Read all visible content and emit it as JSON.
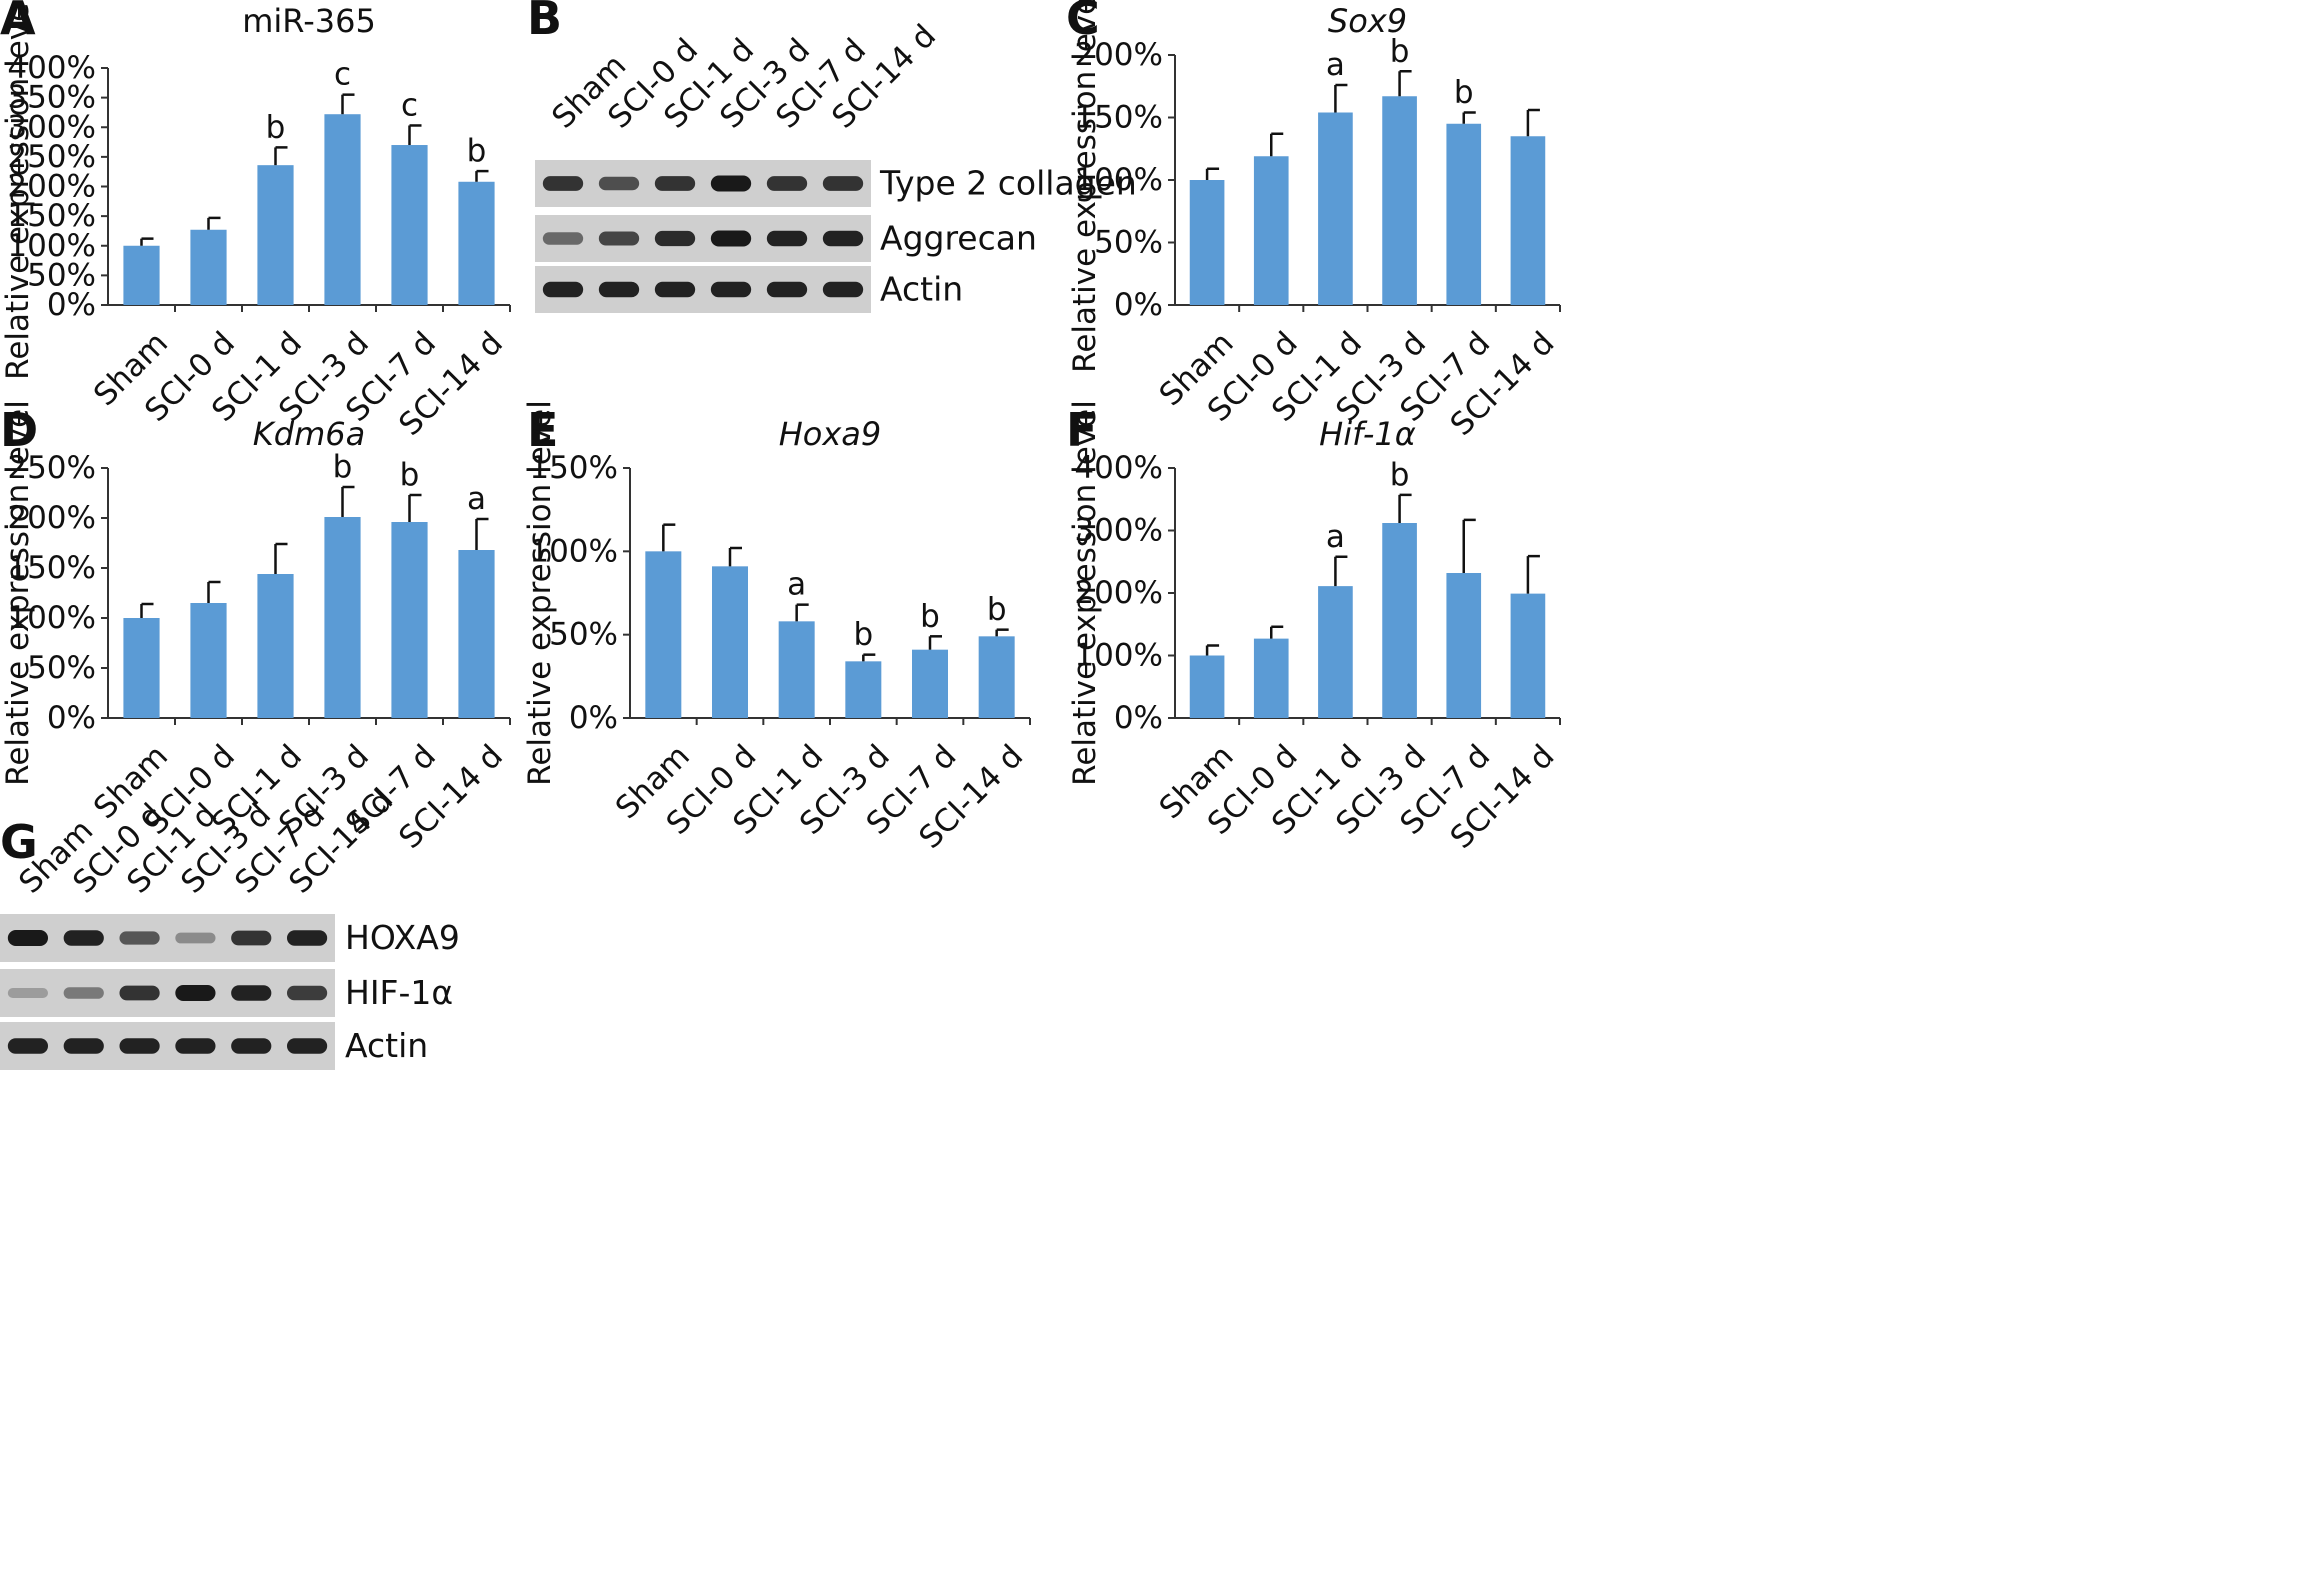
{
  "chart_data": [
    {
      "type": "bar",
      "panel": "A",
      "title": "miR-365",
      "italic_title": false,
      "ylabel": "Relative expression level",
      "categories": [
        "Sham",
        "SCI-0 d",
        "SCI-1 d",
        "SCI-3 d",
        "SCI-7 d",
        "SCI-14 d"
      ],
      "values": [
        100,
        127,
        236,
        322,
        270,
        208
      ],
      "errors": [
        12,
        20,
        30,
        33,
        33,
        18
      ],
      "significance": [
        "",
        "",
        "b",
        "c",
        "c",
        "b"
      ],
      "ylim": [
        0,
        400
      ],
      "ytick_step": 50,
      "yticks": [
        "0%",
        "50%",
        "100%",
        "150%",
        "200%",
        "250%",
        "300%",
        "350%",
        "400%"
      ],
      "bar_color": "#5b9bd5",
      "grid": false
    },
    {
      "type": "bar",
      "panel": "C",
      "title": "Sox9",
      "italic_title": true,
      "ylabel": "Relative expression level",
      "categories": [
        "Sham",
        "SCI-0 d",
        "SCI-1 d",
        "SCI-3 d",
        "SCI-7 d",
        "SCI-14 d"
      ],
      "values": [
        100,
        119,
        154,
        167,
        145,
        135
      ],
      "errors": [
        9,
        18,
        22,
        20,
        9,
        21
      ],
      "significance": [
        "",
        "",
        "a",
        "b",
        "b",
        ""
      ],
      "ylim": [
        0,
        200
      ],
      "ytick_step": 50,
      "yticks": [
        "0%",
        "50%",
        "100%",
        "150%",
        "200%"
      ],
      "bar_color": "#5b9bd5",
      "grid": false
    },
    {
      "type": "bar",
      "panel": "D",
      "title": "Kdm6a",
      "italic_title": true,
      "ylabel": "Relative expression level",
      "categories": [
        "Sham",
        "SCI-0 d",
        "SCI-1 d",
        "SCI-3 d",
        "SCI-7 d",
        "SCI-14 d"
      ],
      "values": [
        100,
        115,
        144,
        201,
        196,
        168
      ],
      "errors": [
        14,
        21,
        30,
        30,
        27,
        31
      ],
      "significance": [
        "",
        "",
        "",
        "b",
        "b",
        "a"
      ],
      "ylim": [
        0,
        250
      ],
      "ytick_step": 50,
      "yticks": [
        "0%",
        "50%",
        "100%",
        "150%",
        "200%",
        "250%"
      ],
      "bar_color": "#5b9bd5",
      "grid": false
    },
    {
      "type": "bar",
      "panel": "E",
      "title": "Hoxa9",
      "italic_title": true,
      "ylabel": "Relative expression level",
      "categories": [
        "Sham",
        "SCI-0 d",
        "SCI-1 d",
        "SCI-3 d",
        "SCI-7 d",
        "SCI-14 d"
      ],
      "values": [
        100,
        91,
        58,
        34,
        41,
        49
      ],
      "errors": [
        16,
        11,
        10,
        4,
        8,
        4
      ],
      "significance": [
        "",
        "",
        "a",
        "b",
        "b",
        "b"
      ],
      "ylim": [
        0,
        150
      ],
      "ytick_step": 50,
      "yticks": [
        "0%",
        "50%",
        "100%",
        "150%"
      ],
      "bar_color": "#5b9bd5",
      "grid": false
    },
    {
      "type": "bar",
      "panel": "F",
      "title": "Hif-1α",
      "italic_title": true,
      "ylabel": "Relative expression level",
      "categories": [
        "Sham",
        "SCI-0 d",
        "SCI-1 d",
        "SCI-3 d",
        "SCI-7 d",
        "SCI-14 d"
      ],
      "values": [
        100,
        127,
        211,
        312,
        232,
        199
      ],
      "errors": [
        16,
        19,
        47,
        45,
        85,
        60
      ],
      "significance": [
        "",
        "",
        "a",
        "b",
        "",
        ""
      ],
      "ylim": [
        0,
        400
      ],
      "ytick_step": 100,
      "yticks": [
        "0%",
        "100%",
        "200%",
        "300%",
        "400%"
      ],
      "bar_color": "#5b9bd5",
      "grid": false
    }
  ],
  "blots": [
    {
      "panel": "B",
      "lanes": [
        "Sham",
        "SCI-0 d",
        "SCI-1 d",
        "SCI-3 d",
        "SCI-7 d",
        "SCI-14 d"
      ],
      "rows": [
        {
          "label": "Type 2 collagen",
          "intensity": [
            0.85,
            0.7,
            0.85,
            1.0,
            0.85,
            0.85
          ]
        },
        {
          "label": "Aggrecan",
          "intensity": [
            0.55,
            0.75,
            0.9,
            1.0,
            0.95,
            0.95
          ]
        },
        {
          "label": "Actin",
          "intensity": [
            0.95,
            0.95,
            0.95,
            0.95,
            0.95,
            0.95
          ]
        }
      ]
    },
    {
      "panel": "G",
      "lanes": [
        "Sham",
        "SCI-0 d",
        "SCI-1 d",
        "SCI-3 d",
        "SCI-7 d",
        "SCI-14 d"
      ],
      "rows": [
        {
          "label": "HOXA9",
          "intensity": [
            1.0,
            0.95,
            0.65,
            0.35,
            0.85,
            0.95
          ]
        },
        {
          "label": "HIF-1α",
          "intensity": [
            0.25,
            0.45,
            0.85,
            1.0,
            0.95,
            0.8
          ]
        },
        {
          "label": "Actin",
          "intensity": [
            0.95,
            0.95,
            0.95,
            0.95,
            0.95,
            0.95
          ]
        }
      ]
    }
  ]
}
